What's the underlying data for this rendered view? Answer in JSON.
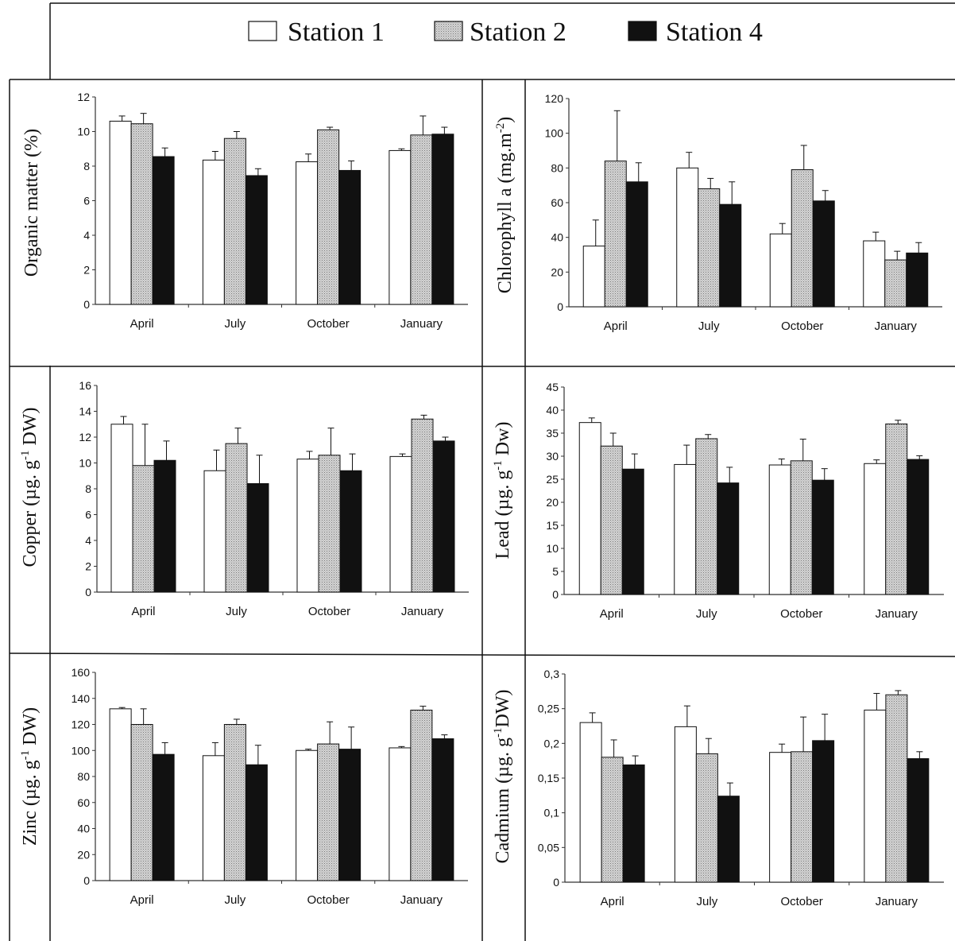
{
  "legend": {
    "items": [
      {
        "label": "Station 1",
        "color": "#ffffff"
      },
      {
        "label": "Station 2",
        "color": "#c8c8c8"
      },
      {
        "label": "Station 4",
        "color": "#111111"
      }
    ]
  },
  "chart_data": [
    {
      "id": "organic",
      "type": "bar",
      "ylabel_main": "Organic matter (%)",
      "ylabel_sup": "",
      "ylabel_end": "",
      "categories": [
        "April",
        "July",
        "October",
        "January"
      ],
      "series": [
        {
          "name": "Station 1",
          "values": [
            10.6,
            8.35,
            8.25,
            8.9
          ],
          "errors": [
            0.3,
            0.5,
            0.45,
            0.1
          ]
        },
        {
          "name": "Station 2",
          "values": [
            10.45,
            9.6,
            10.1,
            9.8
          ],
          "errors": [
            0.6,
            0.4,
            0.15,
            1.1
          ]
        },
        {
          "name": "Station 4",
          "values": [
            8.55,
            7.45,
            7.75,
            9.85
          ],
          "errors": [
            0.5,
            0.4,
            0.55,
            0.4
          ]
        }
      ],
      "yticks": [
        "0",
        "2",
        "4",
        "6",
        "8",
        "10",
        "12"
      ],
      "ylim": [
        0,
        12
      ]
    },
    {
      "id": "chlorophyll",
      "type": "bar",
      "ylabel_main": "Chlorophyll a (mg.m",
      "ylabel_sup": "-2",
      "ylabel_end": ")",
      "categories": [
        "April",
        "July",
        "October",
        "January"
      ],
      "series": [
        {
          "name": "Station 1",
          "values": [
            35,
            80,
            42,
            38
          ],
          "errors": [
            15,
            9,
            6,
            5
          ]
        },
        {
          "name": "Station 2",
          "values": [
            84,
            68,
            79,
            27
          ],
          "errors": [
            29,
            6,
            14,
            5
          ]
        },
        {
          "name": "Station 4",
          "values": [
            72,
            59,
            61,
            31
          ],
          "errors": [
            11,
            13,
            6,
            6
          ]
        }
      ],
      "yticks": [
        "0",
        "20",
        "40",
        "60",
        "80",
        "100",
        "120"
      ],
      "ylim": [
        0,
        120
      ]
    },
    {
      "id": "copper",
      "type": "bar",
      "ylabel_main": "Copper (µg. g",
      "ylabel_sup": "-1",
      "ylabel_end": " DW)",
      "categories": [
        "April",
        "July",
        "October",
        "January"
      ],
      "series": [
        {
          "name": "Station 1",
          "values": [
            13.0,
            9.4,
            10.3,
            10.5
          ],
          "errors": [
            0.6,
            1.6,
            0.6,
            0.2
          ]
        },
        {
          "name": "Station 2",
          "values": [
            9.8,
            11.5,
            10.6,
            13.4
          ],
          "errors": [
            3.2,
            1.2,
            2.1,
            0.3
          ]
        },
        {
          "name": "Station 4",
          "values": [
            10.2,
            8.4,
            9.4,
            11.7
          ],
          "errors": [
            1.5,
            2.2,
            1.3,
            0.3
          ]
        }
      ],
      "yticks": [
        "0",
        "2",
        "4",
        "6",
        "8",
        "10",
        "12",
        "14",
        "16"
      ],
      "ylim": [
        0,
        16
      ]
    },
    {
      "id": "lead",
      "type": "bar",
      "ylabel_main": "Lead (µg. g",
      "ylabel_sup": "-1",
      "ylabel_end": " Dw)",
      "categories": [
        "April",
        "July",
        "October",
        "January"
      ],
      "series": [
        {
          "name": "Station 1",
          "values": [
            37.3,
            28.2,
            28.1,
            28.4
          ],
          "errors": [
            1.0,
            4.2,
            1.3,
            0.8
          ]
        },
        {
          "name": "Station 2",
          "values": [
            32.2,
            33.8,
            29.0,
            37.0
          ],
          "errors": [
            2.8,
            0.9,
            4.7,
            0.8
          ]
        },
        {
          "name": "Station 4",
          "values": [
            27.2,
            24.2,
            24.8,
            29.3
          ],
          "errors": [
            3.3,
            3.4,
            2.5,
            0.8
          ]
        }
      ],
      "yticks": [
        "0",
        "5",
        "10",
        "15",
        "20",
        "25",
        "30",
        "35",
        "40",
        "45"
      ],
      "ylim": [
        0,
        45
      ]
    },
    {
      "id": "zinc",
      "type": "bar",
      "ylabel_main": "Zinc (µg. g",
      "ylabel_sup": "-1",
      "ylabel_end": " DW)",
      "categories": [
        "April",
        "July",
        "October",
        "January"
      ],
      "series": [
        {
          "name": "Station 1",
          "values": [
            132,
            96,
            100,
            102
          ],
          "errors": [
            1,
            10,
            1,
            1
          ]
        },
        {
          "name": "Station 2",
          "values": [
            120,
            120,
            105,
            131
          ],
          "errors": [
            12,
            4,
            17,
            3
          ]
        },
        {
          "name": "Station 4",
          "values": [
            97,
            89,
            101,
            109
          ],
          "errors": [
            9,
            15,
            17,
            3
          ]
        }
      ],
      "yticks": [
        "0",
        "20",
        "40",
        "60",
        "80",
        "100",
        "120",
        "140",
        "160"
      ],
      "ylim": [
        0,
        160
      ]
    },
    {
      "id": "cadmium",
      "type": "bar",
      "ylabel_main": "Cadmium (µg. g",
      "ylabel_sup": "-1",
      "ylabel_end": "DW)",
      "categories": [
        "April",
        "July",
        "October",
        "January"
      ],
      "series": [
        {
          "name": "Station 1",
          "values": [
            0.23,
            0.224,
            0.187,
            0.248
          ],
          "errors": [
            0.014,
            0.03,
            0.012,
            0.024
          ]
        },
        {
          "name": "Station 2",
          "values": [
            0.18,
            0.185,
            0.188,
            0.27
          ],
          "errors": [
            0.025,
            0.022,
            0.05,
            0.006
          ]
        },
        {
          "name": "Station 4",
          "values": [
            0.169,
            0.124,
            0.204,
            0.178
          ],
          "errors": [
            0.013,
            0.019,
            0.038,
            0.01
          ]
        }
      ],
      "yticks": [
        "0",
        "0,05",
        "0,1",
        "0,15",
        "0,2",
        "0,25",
        "0,3"
      ],
      "ylim": [
        0,
        0.3
      ]
    }
  ]
}
